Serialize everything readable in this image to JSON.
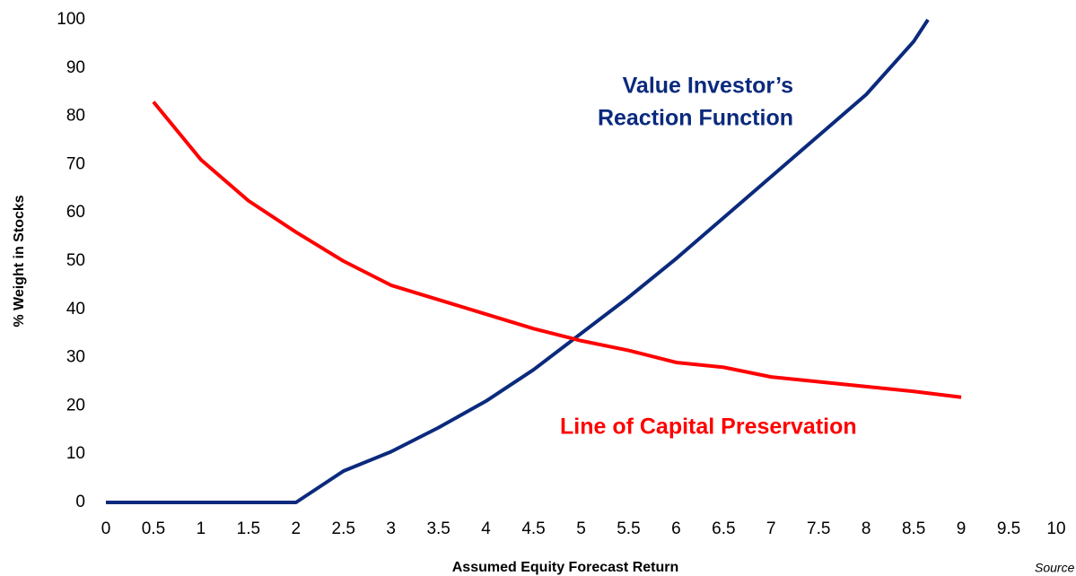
{
  "chart_data": {
    "type": "line",
    "x_label": "Assumed Equity Forecast Return",
    "y_label": "% Weight in Stocks",
    "annotations": [
      [
        "Value Investor’s",
        "Reaction Function"
      ],
      [
        "Line of Capital Preservation"
      ]
    ],
    "source": "Source",
    "series": [
      {
        "color": "#0b2a7d",
        "x": [
          0,
          0.5,
          1,
          1.5,
          2,
          2.5,
          3,
          3.5,
          4,
          4.5,
          5,
          5.5,
          6,
          6.5,
          7,
          7.5,
          8,
          8.5,
          8.65
        ],
        "values": [
          0,
          0,
          0,
          0,
          0,
          6.5,
          10.5,
          15.5,
          21,
          27.5,
          35,
          42.5,
          50.5,
          59,
          67.5,
          76,
          84.5,
          95.5,
          100
        ]
      },
      {
        "color": "#ff0000",
        "x": [
          0.5,
          1,
          1.5,
          2,
          2.5,
          3,
          3.5,
          4,
          4.5,
          5,
          5.5,
          6,
          6.5,
          7,
          7.5,
          8,
          8.5,
          9
        ],
        "values": [
          83,
          71,
          62.5,
          56,
          50,
          45,
          42,
          39,
          36,
          33.5,
          31.5,
          29,
          28,
          26,
          25,
          24,
          23,
          21.8
        ]
      }
    ],
    "xlim": [
      0,
      10
    ],
    "xticks": [
      0,
      0.5,
      1,
      1.5,
      2,
      2.5,
      3,
      3.5,
      4,
      4.5,
      5,
      5.5,
      6,
      6.5,
      7,
      7.5,
      8,
      8.5,
      9,
      9.5,
      10
    ],
    "ylim": [
      0,
      100
    ],
    "yticks": [
      0,
      10,
      20,
      30,
      40,
      50,
      60,
      70,
      80,
      90,
      100
    ],
    "grid": false
  }
}
